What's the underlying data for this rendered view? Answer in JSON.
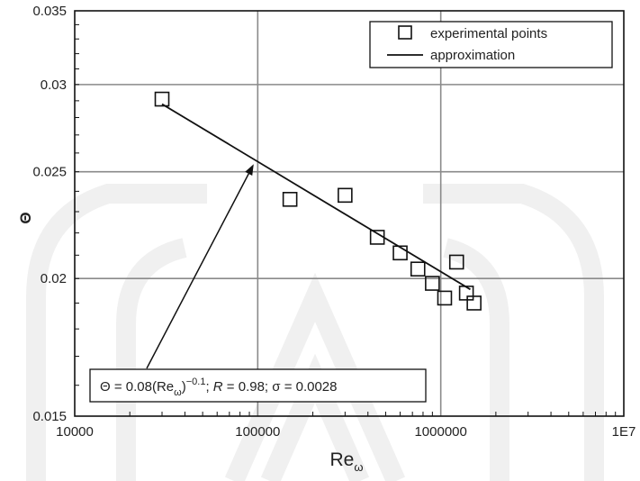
{
  "chart_data": {
    "type": "scatter",
    "x_scale": "log",
    "y_scale": "log",
    "xlim": [
      10000,
      10000000
    ],
    "ylim": [
      0.015,
      0.035
    ],
    "grid": true,
    "xlabel": "Re",
    "xlabel_sub": "ω",
    "ylabel": "Θ",
    "x_ticks": [
      {
        "value": 10000,
        "label": "10000"
      },
      {
        "value": 100000,
        "label": "100000"
      },
      {
        "value": 1000000,
        "label": "1000000"
      },
      {
        "value": 10000000,
        "label": "1E7"
      }
    ],
    "y_ticks": [
      {
        "value": 0.015,
        "label": "0.015"
      },
      {
        "value": 0.02,
        "label": "0.02"
      },
      {
        "value": 0.025,
        "label": "0.025"
      },
      {
        "value": 0.03,
        "label": "0.03"
      },
      {
        "value": 0.035,
        "label": "0.035"
      }
    ],
    "legend": {
      "placement": "top-right",
      "entries": [
        "experimental points",
        "approximation"
      ]
    },
    "series": [
      {
        "name": "experimental points",
        "marker": "square",
        "points": [
          {
            "x": 30000,
            "y": 0.0291
          },
          {
            "x": 150000,
            "y": 0.0236
          },
          {
            "x": 300000,
            "y": 0.0238
          },
          {
            "x": 450000,
            "y": 0.0218
          },
          {
            "x": 600000,
            "y": 0.0211
          },
          {
            "x": 750000,
            "y": 0.0204
          },
          {
            "x": 900000,
            "y": 0.0198
          },
          {
            "x": 1050000,
            "y": 0.0192
          },
          {
            "x": 1220000,
            "y": 0.0207
          },
          {
            "x": 1380000,
            "y": 0.0194
          },
          {
            "x": 1520000,
            "y": 0.019
          }
        ]
      },
      {
        "name": "approximation",
        "type": "line",
        "points": [
          {
            "x": 30000,
            "y": 0.0288
          },
          {
            "x": 1450000,
            "y": 0.01955
          }
        ]
      }
    ],
    "annotation": {
      "text_parts": [
        "Θ = 0.08(Re",
        "ω",
        ")",
        "−0.1",
        "; ",
        "R",
        " = 0.98; σ = 0.0028"
      ],
      "arrow_to": {
        "x": 95000,
        "y": 0.0254
      }
    }
  }
}
